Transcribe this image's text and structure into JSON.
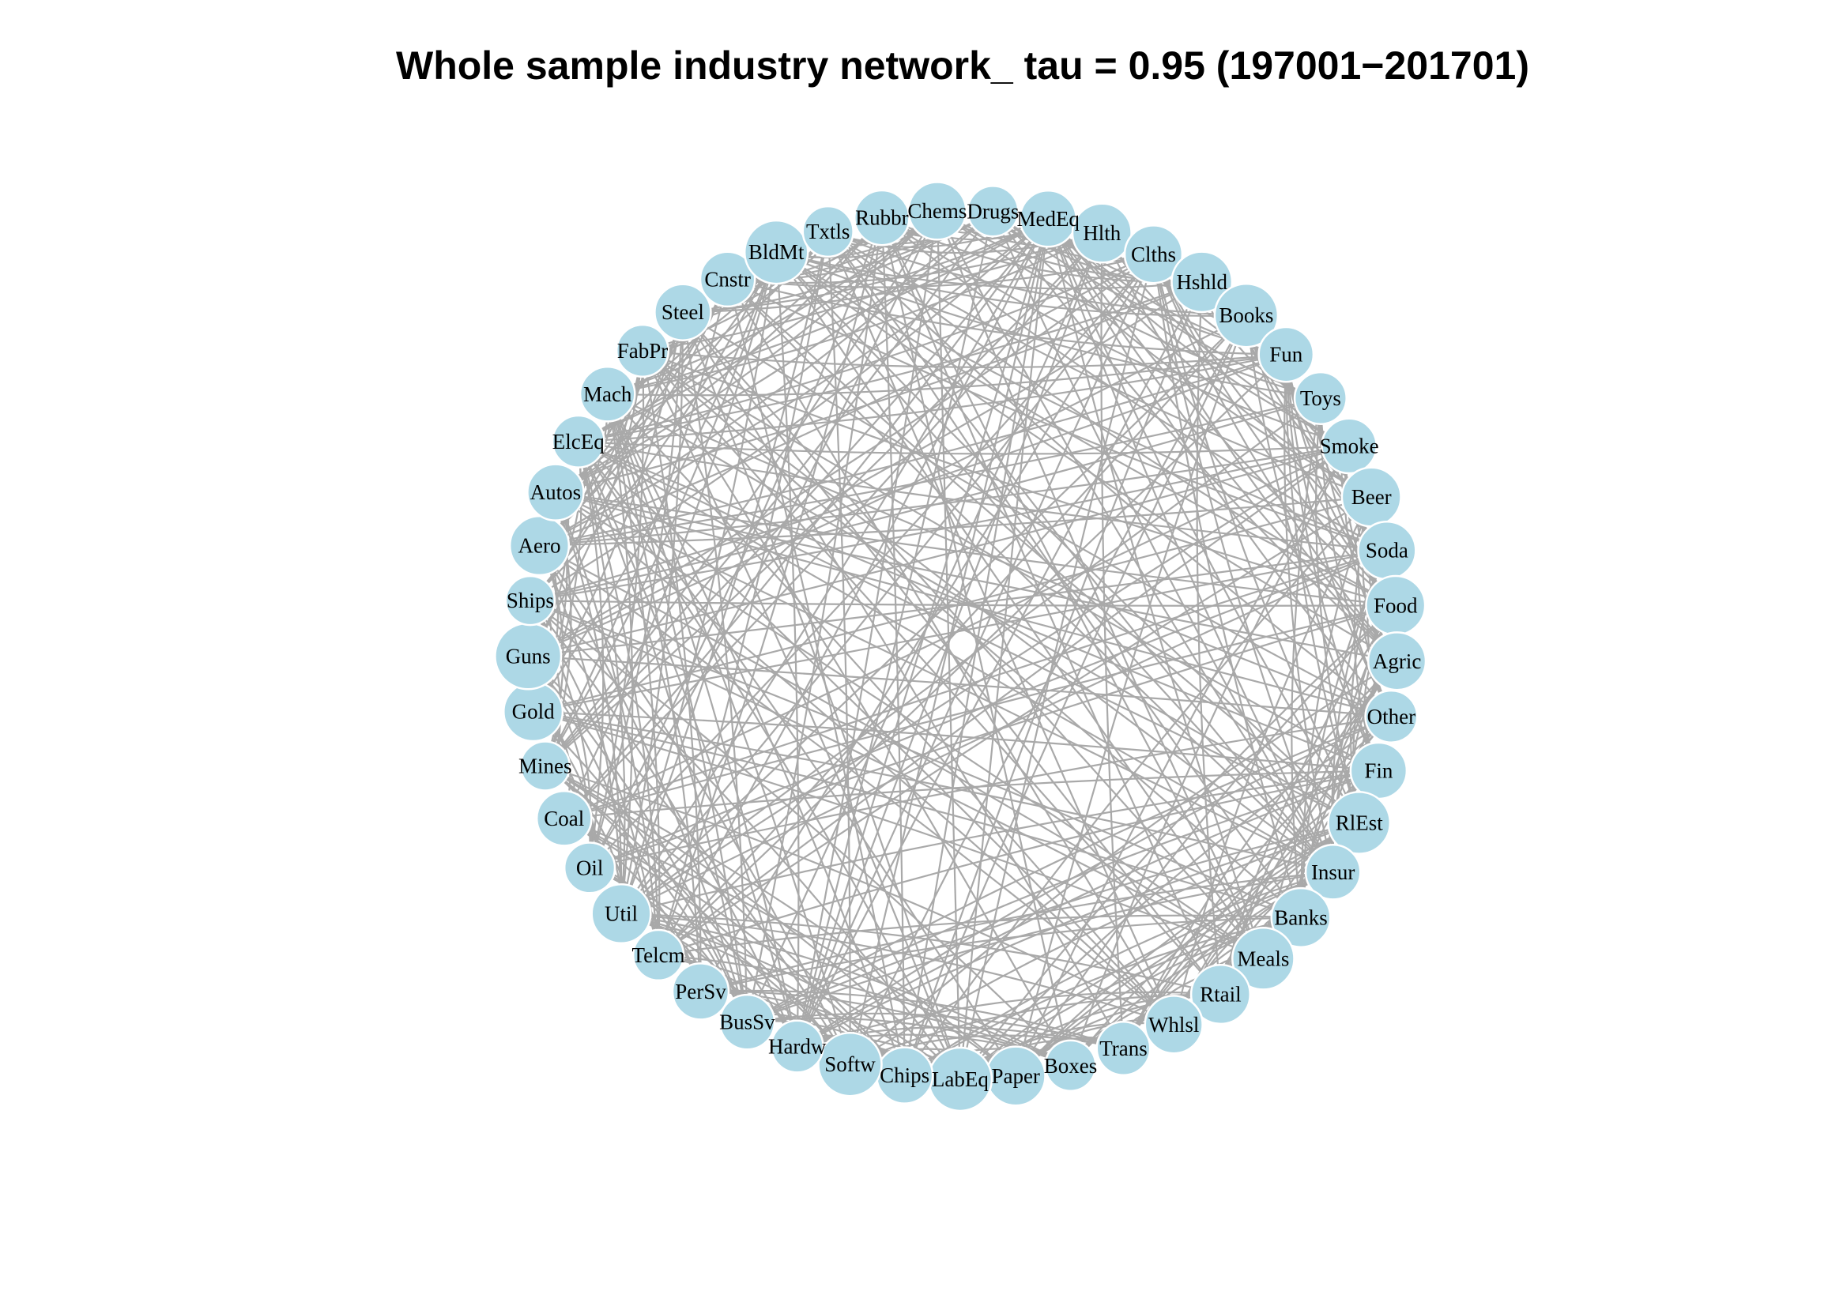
{
  "figure": {
    "title": "Whole sample industry network_ tau = 0.95 (197001−201701)",
    "type": "circular-network",
    "colors": {
      "node": "#add8e6",
      "edge": "#a9a9a9",
      "node_border": "#ffffff",
      "background": "#ffffff"
    }
  },
  "nodes": [
    {
      "label": "Drugs",
      "size": 0.55
    },
    {
      "label": "MedEq",
      "size": 0.75
    },
    {
      "label": "Hlth",
      "size": 0.85
    },
    {
      "label": "Clths",
      "size": 0.8
    },
    {
      "label": "Hshld",
      "size": 0.9
    },
    {
      "label": "Books",
      "size": 1.0
    },
    {
      "label": "Fun",
      "size": 0.7
    },
    {
      "label": "Toys",
      "size": 0.6
    },
    {
      "label": "Smoke",
      "size": 0.7
    },
    {
      "label": "Beer",
      "size": 0.85
    },
    {
      "label": "Soda",
      "size": 0.8
    },
    {
      "label": "Food",
      "size": 0.85
    },
    {
      "label": "Agric",
      "size": 0.8
    },
    {
      "label": "Other",
      "size": 0.6
    },
    {
      "label": "Fin",
      "size": 0.75
    },
    {
      "label": "RlEst",
      "size": 0.95
    },
    {
      "label": "Insur",
      "size": 0.7
    },
    {
      "label": "Banks",
      "size": 0.85
    },
    {
      "label": "Meals",
      "size": 0.95
    },
    {
      "label": "Rtail",
      "size": 0.85
    },
    {
      "label": "Whlsl",
      "size": 0.8
    },
    {
      "label": "Trans",
      "size": 0.65
    },
    {
      "label": "Boxes",
      "size": 0.55
    },
    {
      "label": "Paper",
      "size": 0.85
    },
    {
      "label": "LabEq",
      "size": 1.0
    },
    {
      "label": "Chips",
      "size": 0.75
    },
    {
      "label": "Softw",
      "size": 1.0
    },
    {
      "label": "Hardw",
      "size": 0.6
    },
    {
      "label": "BusSv",
      "size": 0.7
    },
    {
      "label": "PerSv",
      "size": 0.75
    },
    {
      "label": "Telcm",
      "size": 0.55
    },
    {
      "label": "Util",
      "size": 0.85
    },
    {
      "label": "Oil",
      "size": 0.55
    },
    {
      "label": "Coal",
      "size": 0.7
    },
    {
      "label": "Mines",
      "size": 0.5
    },
    {
      "label": "Gold",
      "size": 0.85
    },
    {
      "label": "Guns",
      "size": 1.1
    },
    {
      "label": "Ships",
      "size": 0.5
    },
    {
      "label": "Aero",
      "size": 0.85
    },
    {
      "label": "Autos",
      "size": 0.75
    },
    {
      "label": "ElcEq",
      "size": 0.6
    },
    {
      "label": "Mach",
      "size": 0.7
    },
    {
      "label": "FabPr",
      "size": 0.6
    },
    {
      "label": "Steel",
      "size": 0.75
    },
    {
      "label": "Cnstr",
      "size": 0.7
    },
    {
      "label": "BldMt",
      "size": 1.0
    },
    {
      "label": "Txtls",
      "size": 0.55
    },
    {
      "label": "Rubbr",
      "size": 0.7
    },
    {
      "label": "Chems",
      "size": 0.8
    }
  ]
}
